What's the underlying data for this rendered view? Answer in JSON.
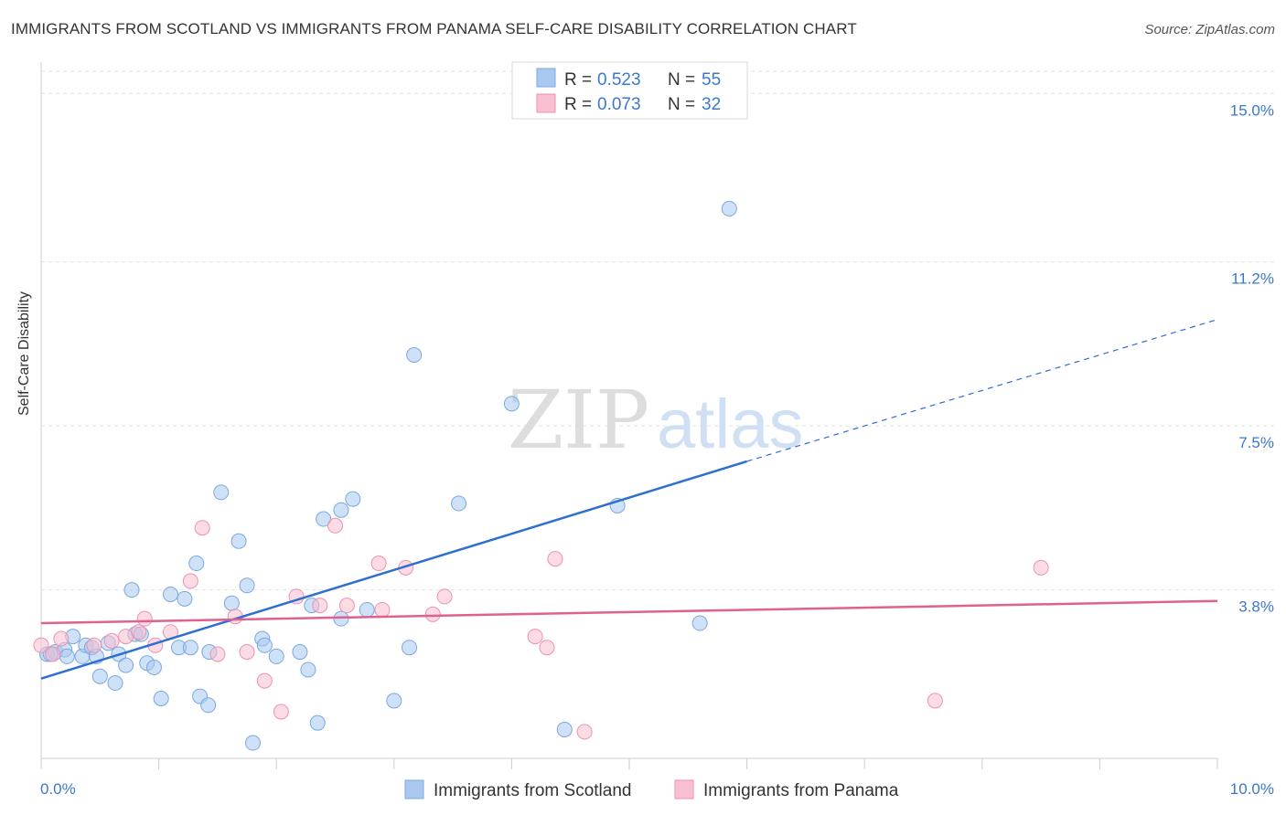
{
  "title": "IMMIGRANTS FROM SCOTLAND VS IMMIGRANTS FROM PANAMA SELF-CARE DISABILITY CORRELATION CHART",
  "source": "Source: ZipAtlas.com",
  "watermark": {
    "zip": "ZIP",
    "atlas": "atlas"
  },
  "colors": {
    "scotland_fill": "#a8c8f0",
    "scotland_stroke": "#7aa8e0",
    "scotland_line": "#2f6fd0",
    "panama_fill": "#f8c0d0",
    "panama_stroke": "#f090b0",
    "panama_line": "#e06090",
    "value_text": "#3a78d0"
  },
  "legend": {
    "entries": [
      {
        "r_label": "R =",
        "r_value": "0.523",
        "n_label": "N =",
        "n_value": "55"
      },
      {
        "r_label": "R =",
        "r_value": "0.073",
        "n_label": "N =",
        "n_value": "32"
      }
    ]
  },
  "chart_data": {
    "type": "scatter",
    "title": "IMMIGRANTS FROM SCOTLAND VS IMMIGRANTS FROM PANAMA SELF-CARE DISABILITY CORRELATION CHART",
    "xlabel": "",
    "ylabel": "Self-Care Disability",
    "xlim": [
      0,
      10
    ],
    "ylim": [
      0,
      15.5
    ],
    "x_tick_labels": [
      "0.0%",
      "10.0%"
    ],
    "y_ticks": [
      3.8,
      7.5,
      11.2,
      15.0
    ],
    "y_tick_labels": [
      "3.8%",
      "7.5%",
      "11.2%",
      "15.0%"
    ],
    "grid": true,
    "legend_position": "top-center",
    "series": [
      {
        "name": "Immigrants from Scotland",
        "r": 0.523,
        "n": 55,
        "trend": {
          "x0": 0.0,
          "y0": 1.8,
          "x1": 6.0,
          "y1": 6.7,
          "x_dash_end": 10.0,
          "y_dash_end": 9.9
        },
        "points": [
          [
            0.05,
            2.35
          ],
          [
            0.12,
            2.4
          ],
          [
            0.2,
            2.45
          ],
          [
            0.22,
            2.3
          ],
          [
            0.27,
            2.75
          ],
          [
            0.35,
            2.3
          ],
          [
            0.38,
            2.55
          ],
          [
            0.43,
            2.5
          ],
          [
            0.47,
            2.3
          ],
          [
            0.5,
            1.85
          ],
          [
            0.57,
            2.6
          ],
          [
            0.63,
            1.7
          ],
          [
            0.66,
            2.35
          ],
          [
            0.72,
            2.1
          ],
          [
            0.77,
            3.8
          ],
          [
            0.8,
            2.8
          ],
          [
            0.85,
            2.8
          ],
          [
            0.9,
            2.15
          ],
          [
            0.96,
            2.05
          ],
          [
            1.02,
            1.35
          ],
          [
            1.1,
            3.7
          ],
          [
            1.17,
            2.5
          ],
          [
            1.22,
            3.6
          ],
          [
            1.27,
            2.5
          ],
          [
            1.32,
            4.4
          ],
          [
            1.35,
            1.4
          ],
          [
            1.42,
            1.2
          ],
          [
            1.43,
            2.4
          ],
          [
            1.53,
            6.0
          ],
          [
            1.62,
            3.5
          ],
          [
            1.68,
            4.9
          ],
          [
            1.75,
            3.9
          ],
          [
            1.8,
            0.35
          ],
          [
            1.88,
            2.7
          ],
          [
            1.9,
            2.55
          ],
          [
            2.0,
            2.3
          ],
          [
            2.2,
            2.4
          ],
          [
            2.27,
            2.0
          ],
          [
            2.3,
            3.45
          ],
          [
            2.35,
            0.8
          ],
          [
            2.4,
            5.4
          ],
          [
            2.55,
            5.6
          ],
          [
            2.55,
            3.15
          ],
          [
            2.65,
            5.85
          ],
          [
            2.77,
            3.35
          ],
          [
            3.0,
            1.3
          ],
          [
            3.13,
            2.5
          ],
          [
            3.17,
            9.1
          ],
          [
            3.55,
            5.75
          ],
          [
            4.0,
            8.0
          ],
          [
            4.45,
            0.65
          ],
          [
            4.9,
            5.7
          ],
          [
            5.6,
            3.05
          ],
          [
            5.85,
            12.4
          ],
          [
            0.08,
            2.35
          ]
        ]
      },
      {
        "name": "Immigrants from Panama",
        "r": 0.073,
        "n": 32,
        "trend": {
          "x0": 0.0,
          "y0": 3.05,
          "x1": 10.0,
          "y1": 3.55
        },
        "points": [
          [
            0.0,
            2.55
          ],
          [
            0.1,
            2.35
          ],
          [
            0.17,
            2.7
          ],
          [
            0.45,
            2.55
          ],
          [
            0.6,
            2.65
          ],
          [
            0.72,
            2.75
          ],
          [
            0.83,
            2.85
          ],
          [
            0.88,
            3.15
          ],
          [
            0.97,
            2.55
          ],
          [
            1.1,
            2.85
          ],
          [
            1.27,
            4.0
          ],
          [
            1.37,
            5.2
          ],
          [
            1.5,
            2.35
          ],
          [
            1.65,
            3.2
          ],
          [
            1.75,
            2.4
          ],
          [
            1.9,
            1.75
          ],
          [
            2.04,
            1.05
          ],
          [
            2.17,
            3.65
          ],
          [
            2.37,
            3.45
          ],
          [
            2.5,
            5.25
          ],
          [
            2.6,
            3.45
          ],
          [
            2.87,
            4.4
          ],
          [
            2.9,
            3.35
          ],
          [
            3.1,
            4.3
          ],
          [
            3.33,
            3.25
          ],
          [
            3.43,
            3.65
          ],
          [
            4.2,
            2.75
          ],
          [
            4.3,
            2.5
          ],
          [
            4.37,
            4.5
          ],
          [
            4.62,
            0.6
          ],
          [
            7.6,
            1.3
          ],
          [
            8.5,
            4.3
          ]
        ]
      }
    ]
  },
  "bottom_legend": {
    "scotland": "Immigrants from Scotland",
    "panama": "Immigrants from Panama"
  }
}
